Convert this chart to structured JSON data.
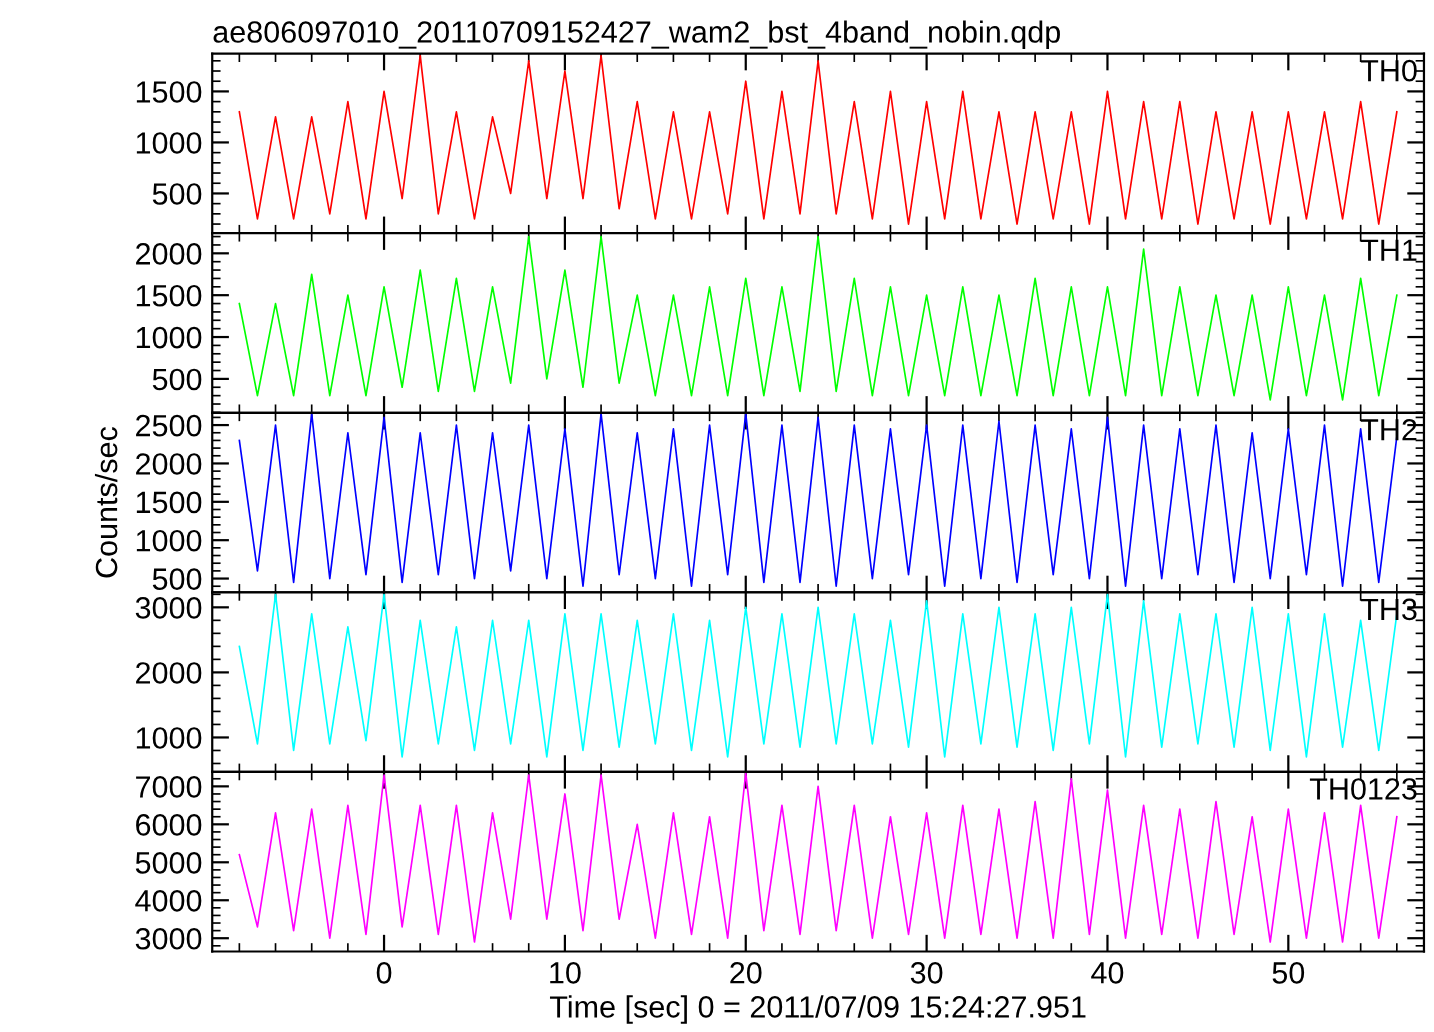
{
  "chart_data": [
    {
      "type": "line",
      "title": "ae806097010_20110709152427_wam2_bst_4band_nobin.qdp",
      "xlim": [
        -9.5,
        57.5
      ],
      "xticks": [
        0,
        10,
        20,
        30,
        40,
        50
      ],
      "ylim": [
        110,
        1870
      ],
      "yticks": [
        500,
        1000,
        1500
      ],
      "tick_labels": "y",
      "x": [
        -8,
        -7,
        -6,
        -5,
        -4,
        -3,
        -2,
        -1,
        0,
        1,
        2,
        3,
        4,
        5,
        6,
        7,
        8,
        9,
        10,
        11,
        12,
        13,
        14,
        15,
        16,
        17,
        18,
        19,
        20,
        21,
        22,
        23,
        24,
        25,
        26,
        27,
        28,
        29,
        30,
        31,
        32,
        33,
        34,
        35,
        36,
        37,
        38,
        39,
        40,
        41,
        42,
        43,
        44,
        45,
        46,
        47,
        48,
        49,
        50,
        51,
        52,
        53,
        54,
        55,
        56
      ],
      "series": [
        {
          "name": "TH0",
          "color": "#ff0000",
          "values": [
            1300,
            250,
            1250,
            250,
            1250,
            300,
            1400,
            250,
            1500,
            450,
            1850,
            300,
            1300,
            250,
            1250,
            500,
            1800,
            450,
            1700,
            450,
            1850,
            350,
            1400,
            250,
            1300,
            250,
            1300,
            300,
            1600,
            250,
            1500,
            300,
            1800,
            300,
            1400,
            250,
            1500,
            200,
            1400,
            250,
            1500,
            250,
            1300,
            200,
            1300,
            250,
            1300,
            200,
            1500,
            250,
            1400,
            250,
            1400,
            200,
            1300,
            250,
            1300,
            200,
            1300,
            250,
            1300,
            250,
            1400,
            200,
            1300
          ]
        }
      ]
    },
    {
      "type": "line",
      "xlim": [
        -9.5,
        57.5
      ],
      "xticks": [
        0,
        10,
        20,
        30,
        40,
        50
      ],
      "ylim": [
        95,
        2240
      ],
      "yticks": [
        500,
        1000,
        1500,
        2000
      ],
      "tick_labels": "y",
      "x": [
        -8,
        -7,
        -6,
        -5,
        -4,
        -3,
        -2,
        -1,
        0,
        1,
        2,
        3,
        4,
        5,
        6,
        7,
        8,
        9,
        10,
        11,
        12,
        13,
        14,
        15,
        16,
        17,
        18,
        19,
        20,
        21,
        22,
        23,
        24,
        25,
        26,
        27,
        28,
        29,
        30,
        31,
        32,
        33,
        34,
        35,
        36,
        37,
        38,
        39,
        40,
        41,
        42,
        43,
        44,
        45,
        46,
        47,
        48,
        49,
        50,
        51,
        52,
        53,
        54,
        55,
        56
      ],
      "series": [
        {
          "name": "TH1",
          "color": "#00ff00",
          "values": [
            1400,
            300,
            1400,
            300,
            1750,
            300,
            1500,
            300,
            1600,
            400,
            1800,
            350,
            1700,
            350,
            1600,
            450,
            2200,
            500,
            1800,
            400,
            2200,
            450,
            1500,
            300,
            1500,
            300,
            1600,
            300,
            1700,
            300,
            1600,
            350,
            2200,
            350,
            1700,
            300,
            1600,
            300,
            1500,
            300,
            1600,
            300,
            1500,
            300,
            1700,
            300,
            1600,
            300,
            1600,
            300,
            2050,
            300,
            1600,
            300,
            1500,
            300,
            1500,
            250,
            1600,
            300,
            1500,
            250,
            1700,
            300,
            1500
          ]
        }
      ]
    },
    {
      "type": "line",
      "ylabel": "Counts/sec",
      "xlim": [
        -9.5,
        57.5
      ],
      "xticks": [
        0,
        10,
        20,
        30,
        40,
        50
      ],
      "ylim": [
        320,
        2660
      ],
      "yticks": [
        500,
        1000,
        1500,
        2000,
        2500
      ],
      "tick_labels": "y",
      "x": [
        -8,
        -7,
        -6,
        -5,
        -4,
        -3,
        -2,
        -1,
        0,
        1,
        2,
        3,
        4,
        5,
        6,
        7,
        8,
        9,
        10,
        11,
        12,
        13,
        14,
        15,
        16,
        17,
        18,
        19,
        20,
        21,
        22,
        23,
        24,
        25,
        26,
        27,
        28,
        29,
        30,
        31,
        32,
        33,
        34,
        35,
        36,
        37,
        38,
        39,
        40,
        41,
        42,
        43,
        44,
        45,
        46,
        47,
        48,
        49,
        50,
        51,
        52,
        53,
        54,
        55,
        56
      ],
      "series": [
        {
          "name": "TH2",
          "color": "#0000ff",
          "values": [
            2300,
            600,
            2500,
            450,
            2650,
            500,
            2400,
            550,
            2600,
            450,
            2400,
            550,
            2500,
            500,
            2400,
            600,
            2500,
            500,
            2450,
            400,
            2650,
            550,
            2400,
            500,
            2450,
            400,
            2500,
            550,
            2650,
            450,
            2500,
            450,
            2600,
            400,
            2500,
            500,
            2450,
            550,
            2500,
            400,
            2500,
            500,
            2550,
            450,
            2500,
            550,
            2450,
            500,
            2600,
            400,
            2500,
            500,
            2450,
            550,
            2500,
            450,
            2400,
            500,
            2450,
            550,
            2500,
            400,
            2450,
            450,
            2350
          ]
        }
      ]
    },
    {
      "type": "line",
      "xlim": [
        -9.5,
        57.5
      ],
      "xticks": [
        0,
        10,
        20,
        30,
        40,
        50
      ],
      "ylim": [
        470,
        3230
      ],
      "yticks": [
        1000,
        2000,
        3000
      ],
      "tick_labels": "y",
      "x": [
        -8,
        -7,
        -6,
        -5,
        -4,
        -3,
        -2,
        -1,
        0,
        1,
        2,
        3,
        4,
        5,
        6,
        7,
        8,
        9,
        10,
        11,
        12,
        13,
        14,
        15,
        16,
        17,
        18,
        19,
        20,
        21,
        22,
        23,
        24,
        25,
        26,
        27,
        28,
        29,
        30,
        31,
        32,
        33,
        34,
        35,
        36,
        37,
        38,
        39,
        40,
        41,
        42,
        43,
        44,
        45,
        46,
        47,
        48,
        49,
        50,
        51,
        52,
        53,
        54,
        55,
        56
      ],
      "series": [
        {
          "name": "TH3",
          "color": "#00ffff",
          "values": [
            2400,
            900,
            3200,
            800,
            2900,
            900,
            2700,
            950,
            3200,
            700,
            2800,
            900,
            2700,
            800,
            2800,
            900,
            2800,
            700,
            2900,
            800,
            2900,
            850,
            2800,
            900,
            2900,
            800,
            2800,
            700,
            3000,
            900,
            2900,
            850,
            3000,
            900,
            2900,
            900,
            2800,
            850,
            3100,
            700,
            2900,
            900,
            3000,
            850,
            2900,
            800,
            3000,
            900,
            3200,
            700,
            3100,
            850,
            2900,
            900,
            2900,
            850,
            3000,
            800,
            2900,
            700,
            2900,
            850,
            2800,
            800,
            2900
          ]
        }
      ]
    },
    {
      "type": "line",
      "xlabel": "Time [sec] 0 = 2011/07/09 15:24:27.951",
      "xlim": [
        -9.5,
        57.5
      ],
      "xticks": [
        0,
        10,
        20,
        30,
        40,
        50
      ],
      "ylim": [
        2650,
        7380
      ],
      "yticks": [
        3000,
        4000,
        5000,
        6000,
        7000
      ],
      "x": [
        -8,
        -7,
        -6,
        -5,
        -4,
        -3,
        -2,
        -1,
        0,
        1,
        2,
        3,
        4,
        5,
        6,
        7,
        8,
        9,
        10,
        11,
        12,
        13,
        14,
        15,
        16,
        17,
        18,
        19,
        20,
        21,
        22,
        23,
        24,
        25,
        26,
        27,
        28,
        29,
        30,
        31,
        32,
        33,
        34,
        35,
        36,
        37,
        38,
        39,
        40,
        41,
        42,
        43,
        44,
        45,
        46,
        47,
        48,
        49,
        50,
        51,
        52,
        53,
        54,
        55,
        56
      ],
      "series": [
        {
          "name": "TH0123",
          "color": "#ff00ff",
          "values": [
            5200,
            3300,
            6300,
            3200,
            6400,
            3000,
            6500,
            3100,
            7300,
            3300,
            6500,
            3100,
            6500,
            2900,
            6300,
            3500,
            7300,
            3500,
            6800,
            3200,
            7300,
            3500,
            6000,
            3000,
            6300,
            3100,
            6200,
            3000,
            7350,
            3200,
            6500,
            3100,
            7000,
            3200,
            6500,
            3000,
            6200,
            3100,
            6300,
            3000,
            6500,
            3100,
            6400,
            3000,
            6600,
            3000,
            7200,
            3100,
            6900,
            3000,
            6500,
            3100,
            6400,
            3000,
            6600,
            3100,
            6200,
            2900,
            6400,
            3000,
            6300,
            2900,
            6500,
            3000,
            6200
          ]
        }
      ]
    }
  ]
}
